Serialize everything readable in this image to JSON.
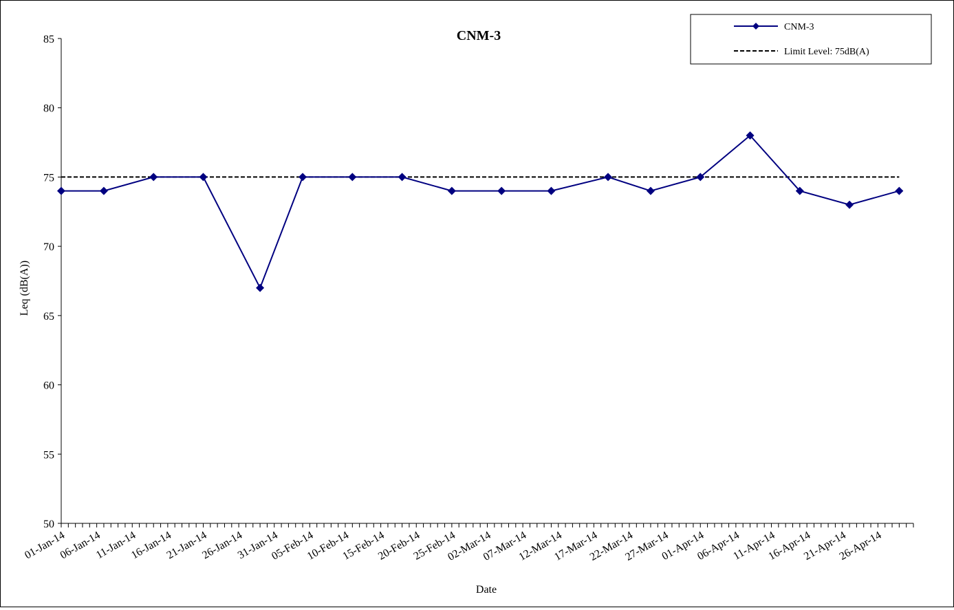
{
  "chart_data": {
    "type": "line",
    "title": "CNM-3",
    "xlabel": "Date",
    "ylabel": "Leq (dB(A))",
    "ylim": [
      50,
      85
    ],
    "yticks": [
      50,
      55,
      60,
      65,
      70,
      75,
      80,
      85
    ],
    "xlim": [
      "2014-01-01",
      "2014-05-01"
    ],
    "xtick_labels": [
      "01-Jan-14",
      "06-Jan-14",
      "11-Jan-14",
      "16-Jan-14",
      "21-Jan-14",
      "26-Jan-14",
      "31-Jan-14",
      "05-Feb-14",
      "10-Feb-14",
      "15-Feb-14",
      "20-Feb-14",
      "25-Feb-14",
      "02-Mar-14",
      "07-Mar-14",
      "12-Mar-14",
      "17-Mar-14",
      "22-Mar-14",
      "27-Mar-14",
      "01-Apr-14",
      "06-Apr-14",
      "11-Apr-14",
      "16-Apr-14",
      "21-Apr-14",
      "26-Apr-14"
    ],
    "grid": false,
    "legend_position": "top-right",
    "series": [
      {
        "name": "CNM-3",
        "color": "#000080",
        "marker": "diamond",
        "points": [
          {
            "x": "2014-01-01",
            "y": 74
          },
          {
            "x": "2014-01-07",
            "y": 74
          },
          {
            "x": "2014-01-14",
            "y": 75
          },
          {
            "x": "2014-01-21",
            "y": 75
          },
          {
            "x": "2014-01-29",
            "y": 67
          },
          {
            "x": "2014-02-04",
            "y": 75
          },
          {
            "x": "2014-02-11",
            "y": 75
          },
          {
            "x": "2014-02-18",
            "y": 75
          },
          {
            "x": "2014-02-25",
            "y": 74
          },
          {
            "x": "2014-03-04",
            "y": 74
          },
          {
            "x": "2014-03-11",
            "y": 74
          },
          {
            "x": "2014-03-19",
            "y": 75
          },
          {
            "x": "2014-03-25",
            "y": 74
          },
          {
            "x": "2014-04-01",
            "y": 75
          },
          {
            "x": "2014-04-08",
            "y": 78
          },
          {
            "x": "2014-04-15",
            "y": 74
          },
          {
            "x": "2014-04-22",
            "y": 73
          },
          {
            "x": "2014-04-29",
            "y": 74
          }
        ]
      },
      {
        "name": "Limit Level: 75dB(A)",
        "color": "#000000",
        "dashed": true,
        "points": [
          {
            "x": "2014-01-01",
            "y": 75
          },
          {
            "x": "2014-04-29",
            "y": 75
          }
        ]
      }
    ]
  }
}
